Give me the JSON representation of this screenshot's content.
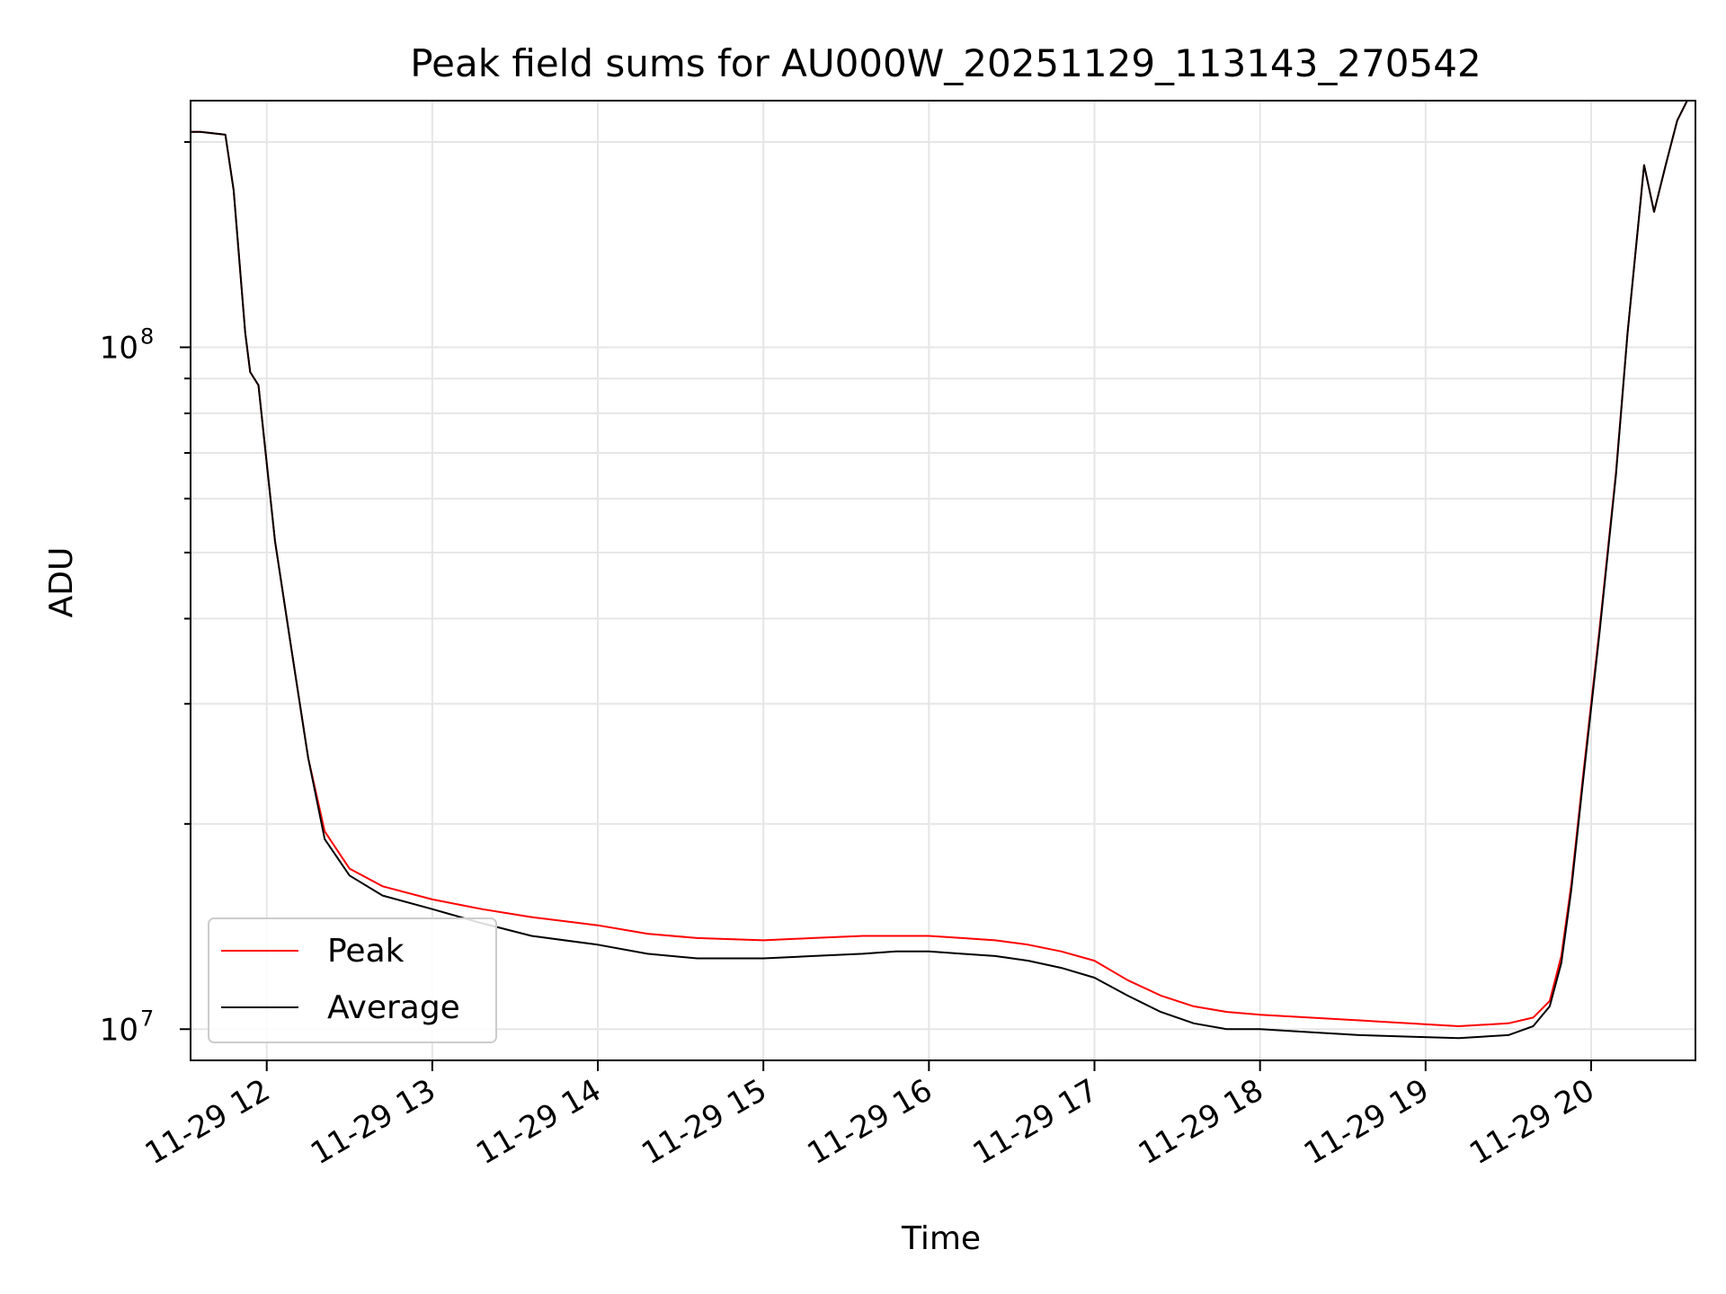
{
  "chart_data": {
    "type": "line",
    "title": "Peak field sums for AU000W_20251129_113143_270542",
    "xlabel": "Time",
    "ylabel": "ADU",
    "yscale": "log",
    "grid": true,
    "legend_position": "lower-left",
    "colors": {
      "peak": "#ff0000",
      "average": "#000000",
      "grid": "#e6e6e6"
    },
    "x_unit": "hours since 2025-11-29 00:00",
    "xlim": [
      11.54,
      20.63
    ],
    "ylim": [
      9000000,
      230000000
    ],
    "x_ticks": [
      {
        "value": 12,
        "label": "11-29 12"
      },
      {
        "value": 13,
        "label": "11-29 13"
      },
      {
        "value": 14,
        "label": "11-29 14"
      },
      {
        "value": 15,
        "label": "11-29 15"
      },
      {
        "value": 16,
        "label": "11-29 16"
      },
      {
        "value": 17,
        "label": "11-29 17"
      },
      {
        "value": 18,
        "label": "11-29 18"
      },
      {
        "value": 19,
        "label": "11-29 19"
      },
      {
        "value": 20,
        "label": "11-29 20"
      }
    ],
    "y_major_ticks": [
      {
        "value": 10000000,
        "base": "10",
        "exponent": "7"
      },
      {
        "value": 100000000,
        "base": "10",
        "exponent": "8"
      }
    ],
    "y_minor_ticks": [
      20000000,
      30000000,
      40000000,
      50000000,
      60000000,
      70000000,
      80000000,
      90000000,
      200000000
    ],
    "series": [
      {
        "name": "Average",
        "x": [
          11.54,
          11.6,
          11.75,
          11.8,
          11.87,
          11.9,
          11.95,
          12.05,
          12.15,
          12.25,
          12.35,
          12.5,
          12.7,
          13.0,
          13.3,
          13.6,
          14.0,
          14.3,
          14.6,
          15.0,
          15.3,
          15.6,
          15.8,
          16.0,
          16.2,
          16.4,
          16.6,
          16.8,
          17.0,
          17.2,
          17.4,
          17.6,
          17.8,
          18.0,
          18.3,
          18.6,
          18.9,
          19.2,
          19.5,
          19.65,
          19.75,
          19.82,
          19.88,
          19.95,
          20.05,
          20.15,
          20.22,
          20.3,
          20.32,
          20.38,
          20.45,
          20.52,
          20.58
        ],
        "y": [
          207000000,
          207000000,
          205000000,
          170000000,
          105000000,
          92000000,
          88000000,
          52000000,
          36000000,
          25000000,
          19000000,
          16800000,
          15700000,
          15000000,
          14300000,
          13700000,
          13300000,
          12900000,
          12700000,
          12700000,
          12800000,
          12900000,
          13000000,
          13000000,
          12900000,
          12800000,
          12600000,
          12300000,
          11900000,
          11200000,
          10600000,
          10200000,
          10000000,
          10000000,
          9900000,
          9800000,
          9750000,
          9700000,
          9800000,
          10100000,
          10800000,
          12500000,
          16000000,
          23000000,
          38000000,
          65000000,
          105000000,
          165000000,
          185000000,
          158000000,
          185000000,
          215000000,
          230000000
        ]
      },
      {
        "name": "Peak",
        "x": [
          11.54,
          11.6,
          11.75,
          11.8,
          11.87,
          11.9,
          11.95,
          12.05,
          12.15,
          12.25,
          12.35,
          12.5,
          12.7,
          13.0,
          13.3,
          13.6,
          14.0,
          14.3,
          14.6,
          15.0,
          15.3,
          15.6,
          15.8,
          16.0,
          16.2,
          16.4,
          16.6,
          16.8,
          17.0,
          17.2,
          17.4,
          17.6,
          17.8,
          18.0,
          18.3,
          18.6,
          18.9,
          19.2,
          19.5,
          19.65,
          19.75,
          19.82,
          19.88,
          19.95,
          20.05,
          20.15,
          20.22,
          20.3,
          20.32,
          20.38,
          20.45,
          20.52,
          20.58
        ],
        "y": [
          207000000,
          207000000,
          205000000,
          170000000,
          105000000,
          92000000,
          88000000,
          52000000,
          36000000,
          25000000,
          19500000,
          17200000,
          16200000,
          15500000,
          15000000,
          14600000,
          14200000,
          13800000,
          13600000,
          13500000,
          13600000,
          13700000,
          13700000,
          13700000,
          13600000,
          13500000,
          13300000,
          13000000,
          12600000,
          11800000,
          11200000,
          10800000,
          10600000,
          10500000,
          10400000,
          10300000,
          10200000,
          10100000,
          10200000,
          10400000,
          11000000,
          12800000,
          16300000,
          23400000,
          38500000,
          65500000,
          105000000,
          165000000,
          185000000,
          158000000,
          185000000,
          215000000,
          230000000
        ]
      }
    ]
  }
}
